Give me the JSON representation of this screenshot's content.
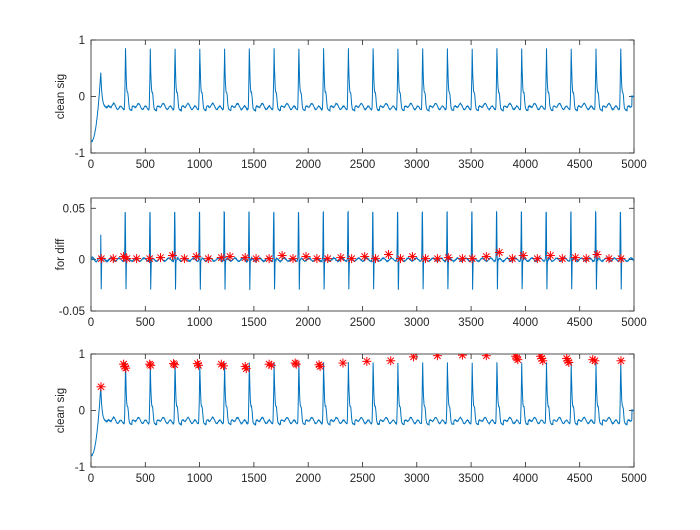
{
  "colors": {
    "signal": "#0072BD",
    "marker": "#FF0000",
    "axis": "#262626",
    "background": "#FFFFFF"
  },
  "chart_data": [
    {
      "type": "line",
      "title": "",
      "xlabel": "",
      "ylabel": "clean sig",
      "xlim": [
        0,
        5000
      ],
      "ylim": [
        -1,
        1
      ],
      "xticks": [
        0,
        500,
        1000,
        1500,
        2000,
        2500,
        3000,
        3500,
        4000,
        4500,
        5000
      ],
      "yticks": [
        -1,
        0,
        1
      ],
      "grid": false,
      "series": [
        {
          "kind": "line",
          "beat_period": 228,
          "first_peak_x": 90,
          "first_peak_y": 0.42,
          "peak_y": 0.85,
          "trough_y": -0.25,
          "start_y": -0.8,
          "end_y": 0.0
        }
      ]
    },
    {
      "type": "line",
      "title": "",
      "xlabel": "",
      "ylabel": "for diff",
      "xlim": [
        0,
        5000
      ],
      "ylim": [
        -0.05,
        0.06
      ],
      "xticks": [
        0,
        500,
        1000,
        1500,
        2000,
        2500,
        3000,
        3500,
        4000,
        4500,
        5000
      ],
      "yticks": [
        -0.05,
        0,
        0.05
      ],
      "grid": false,
      "series": [
        {
          "kind": "line",
          "beat_period": 228,
          "peak_y": 0.05,
          "trough_y": -0.03
        },
        {
          "kind": "markers",
          "marker": "*",
          "x": [
            95,
            205,
            300,
            330,
            420,
            540,
            640,
            750,
            860,
            970,
            1080,
            1200,
            1280,
            1420,
            1520,
            1640,
            1760,
            1860,
            1980,
            2080,
            2180,
            2300,
            2400,
            2520,
            2620,
            2740,
            2850,
            2960,
            3080,
            3190,
            3290,
            3420,
            3510,
            3640,
            3760,
            3880,
            3980,
            4110,
            4230,
            4340,
            4460,
            4560,
            4660,
            4770,
            4880
          ],
          "y": [
            0.001,
            0.001,
            0.003,
            0.001,
            0.001,
            0.001,
            0.002,
            0.004,
            0.001,
            0.003,
            0.001,
            0.002,
            0.003,
            0.002,
            0.001,
            0.001,
            0.004,
            0.001,
            0.003,
            0.001,
            0.001,
            0.002,
            0.001,
            0.003,
            0.001,
            0.005,
            0.001,
            0.003,
            0.001,
            0.001,
            0.002,
            0.001,
            0.001,
            0.003,
            0.007,
            0.001,
            0.004,
            0.001,
            0.004,
            0.001,
            0.002,
            0.001,
            0.005,
            0.001,
            0.001
          ]
        }
      ]
    },
    {
      "type": "line",
      "title": "",
      "xlabel": "",
      "ylabel": "clean sig",
      "xlim": [
        0,
        5000
      ],
      "ylim": [
        -1,
        1
      ],
      "xticks": [
        0,
        500,
        1000,
        1500,
        2000,
        2500,
        3000,
        3500,
        4000,
        4500,
        5000
      ],
      "yticks": [
        -1,
        0,
        1
      ],
      "grid": false,
      "series": [
        {
          "kind": "line",
          "beat_period": 228,
          "first_peak_x": 90,
          "first_peak_y": 0.42,
          "peak_y": 0.85,
          "trough_y": -0.25,
          "start_y": -0.8,
          "end_y": 0.0
        },
        {
          "kind": "markers",
          "marker": "*",
          "x": [
            92,
            300,
            310,
            320,
            540,
            550,
            760,
            770,
            980,
            990,
            1200,
            1220,
            1420,
            1430,
            1640,
            1660,
            1880,
            1890,
            2100,
            2110,
            2320,
            2540,
            2760,
            2970,
            3190,
            3420,
            3640,
            3910,
            3920,
            3930,
            4140,
            4150,
            4160,
            4380,
            4390,
            4400,
            4620,
            4640,
            4880
          ],
          "y": [
            0.42,
            0.82,
            0.78,
            0.75,
            0.82,
            0.8,
            0.83,
            0.81,
            0.83,
            0.8,
            0.82,
            0.79,
            0.78,
            0.74,
            0.82,
            0.8,
            0.84,
            0.82,
            0.81,
            0.78,
            0.84,
            0.87,
            0.88,
            0.95,
            0.97,
            0.98,
            0.97,
            0.96,
            0.93,
            0.9,
            0.96,
            0.92,
            0.88,
            0.92,
            0.88,
            0.85,
            0.9,
            0.88,
            0.88
          ]
        }
      ]
    }
  ]
}
